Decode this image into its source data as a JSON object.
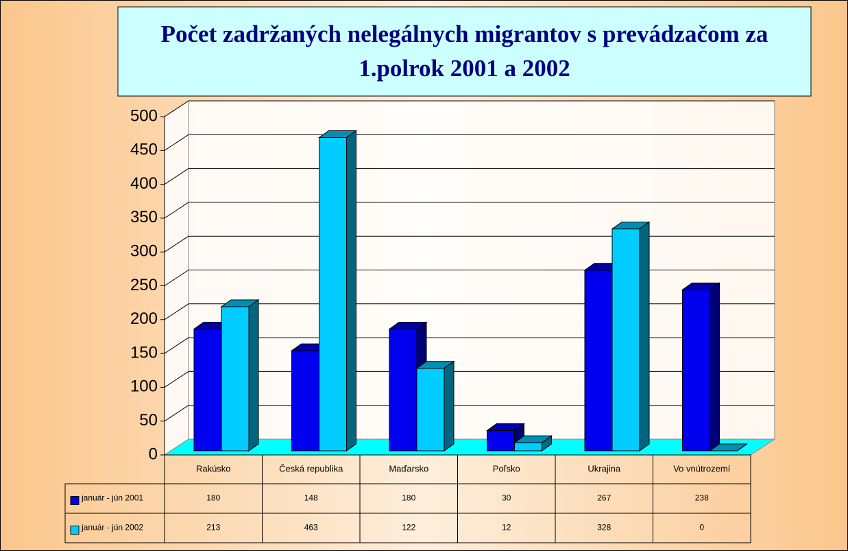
{
  "chart_data": {
    "type": "bar3d",
    "title": "Počet zadržaných nelegálnych migrantov s prevádzačom za 1.polrok 2001 a 2002",
    "categories": [
      "Rakúsko",
      "Česká republika",
      "Maďarsko",
      "Poľsko",
      "Ukrajina",
      "Vo vnútrozemí"
    ],
    "series": [
      {
        "name": "január - jún 2001",
        "color": "#0000ee",
        "values": [
          180,
          148,
          180,
          30,
          267,
          238
        ]
      },
      {
        "name": "január - jún 2002",
        "color": "#00ccff",
        "values": [
          213,
          463,
          122,
          12,
          328,
          0
        ]
      }
    ],
    "ylim": [
      0,
      500
    ],
    "yticks": [
      0,
      50,
      100,
      150,
      200,
      250,
      300,
      350,
      400,
      450,
      500
    ],
    "grid": true
  }
}
